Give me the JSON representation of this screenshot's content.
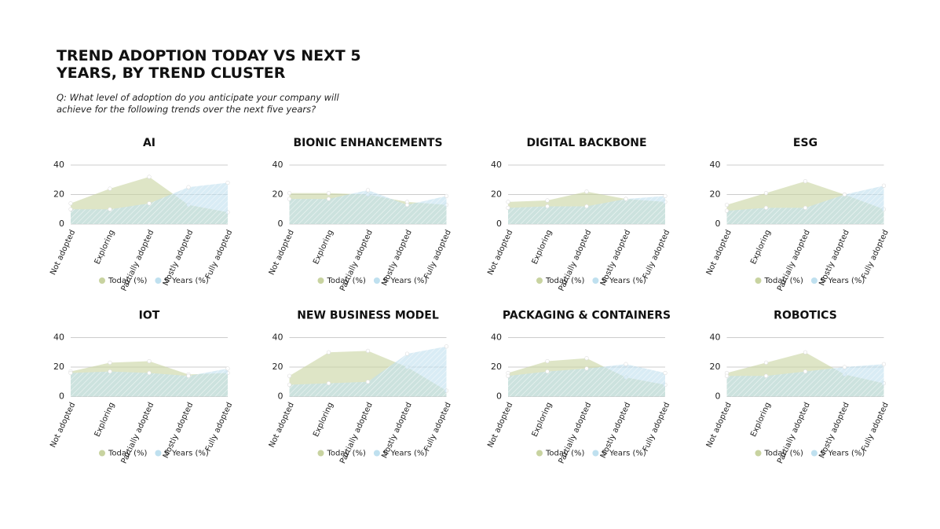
{
  "header": {
    "title": "TREND ADOPTION TODAY VS NEXT 5 YEARS, BY TREND CLUSTER",
    "subtitle": "Q: What level of adoption do you anticipate your company will achieve for the following trends over the next five years?"
  },
  "chart_data": [
    {
      "type": "area",
      "title": "AI",
      "categories": [
        "Not adopted",
        "Exploring",
        "Partially adopted",
        "Mostly adopted",
        "Fully adopted"
      ],
      "series": [
        {
          "name": "Today (%)",
          "color": "#c8d3a0",
          "values": [
            14,
            24,
            32,
            13,
            8
          ]
        },
        {
          "name": "5 Years (%)",
          "color": "#bfe0ef",
          "values": [
            10,
            10,
            14,
            25,
            28
          ]
        }
      ],
      "ylim": [
        0,
        40
      ],
      "yticks": [
        0,
        20,
        40
      ],
      "grid": true,
      "legend": "bottom"
    },
    {
      "type": "area",
      "title": "BIONIC ENHANCEMENTS",
      "categories": [
        "Not adopted",
        "Exploring",
        "Partially adopted",
        "Mostly adopted",
        "Fully adopted"
      ],
      "series": [
        {
          "name": "Today (%)",
          "color": "#c8d3a0",
          "values": [
            21,
            21,
            20,
            15,
            13
          ]
        },
        {
          "name": "5 Years (%)",
          "color": "#bfe0ef",
          "values": [
            17,
            17,
            23,
            13,
            19
          ]
        }
      ],
      "ylim": [
        0,
        40
      ],
      "yticks": [
        0,
        20,
        40
      ],
      "grid": true,
      "legend": "bottom"
    },
    {
      "type": "area",
      "title": "DIGITAL BACKBONE",
      "categories": [
        "Not adopted",
        "Exploring",
        "Partially adopted",
        "Mostly adopted",
        "Fully adopted"
      ],
      "series": [
        {
          "name": "Today (%)",
          "color": "#c8d3a0",
          "values": [
            15,
            16,
            22,
            17,
            15
          ]
        },
        {
          "name": "5 Years (%)",
          "color": "#bfe0ef",
          "values": [
            11,
            12,
            12,
            17,
            19
          ]
        }
      ],
      "ylim": [
        0,
        40
      ],
      "yticks": [
        0,
        20,
        40
      ],
      "grid": true,
      "legend": "bottom"
    },
    {
      "type": "area",
      "title": "ESG",
      "categories": [
        "Not adopted",
        "Exploring",
        "Partially adopted",
        "Mostly adopted",
        "Fully adopted"
      ],
      "series": [
        {
          "name": "Today (%)",
          "color": "#c8d3a0",
          "values": [
            13,
            21,
            29,
            20,
            10
          ]
        },
        {
          "name": "5 Years (%)",
          "color": "#bfe0ef",
          "values": [
            9,
            11,
            11,
            20,
            26
          ]
        }
      ],
      "ylim": [
        0,
        40
      ],
      "yticks": [
        0,
        20,
        40
      ],
      "grid": true,
      "legend": "bottom"
    },
    {
      "type": "area",
      "title": "IOT",
      "categories": [
        "Not adopted",
        "Exploring",
        "Partially adopted",
        "Mostly adopted",
        "Fully adopted"
      ],
      "series": [
        {
          "name": "Today (%)",
          "color": "#c8d3a0",
          "values": [
            17,
            23,
            24,
            15,
            16
          ]
        },
        {
          "name": "5 Years (%)",
          "color": "#bfe0ef",
          "values": [
            16,
            17,
            16,
            14,
            19
          ]
        }
      ],
      "ylim": [
        0,
        40
      ],
      "yticks": [
        0,
        20,
        40
      ],
      "grid": true,
      "legend": "bottom"
    },
    {
      "type": "area",
      "title": "NEW BUSINESS MODEL",
      "categories": [
        "Not adopted",
        "Exploring",
        "Partially adopted",
        "Mostly adopted",
        "Fully adopted"
      ],
      "series": [
        {
          "name": "Today (%)",
          "color": "#c8d3a0",
          "values": [
            14,
            30,
            31,
            20,
            4
          ]
        },
        {
          "name": "5 Years (%)",
          "color": "#bfe0ef",
          "values": [
            8,
            9,
            10,
            29,
            34
          ]
        }
      ],
      "ylim": [
        0,
        40
      ],
      "yticks": [
        0,
        20,
        40
      ],
      "grid": true,
      "legend": "bottom"
    },
    {
      "type": "area",
      "title": "PACKAGING & CONTAINERS",
      "categories": [
        "Not adopted",
        "Exploring",
        "Partially adopted",
        "Mostly adopted",
        "Fully adopted"
      ],
      "series": [
        {
          "name": "Today (%)",
          "color": "#c8d3a0",
          "values": [
            16,
            24,
            26,
            13,
            8
          ]
        },
        {
          "name": "5 Years (%)",
          "color": "#bfe0ef",
          "values": [
            14,
            17,
            19,
            22,
            16
          ]
        }
      ],
      "ylim": [
        0,
        40
      ],
      "yticks": [
        0,
        20,
        40
      ],
      "grid": true,
      "legend": "bottom"
    },
    {
      "type": "area",
      "title": "ROBOTICS",
      "categories": [
        "Not adopted",
        "Exploring",
        "Partially adopted",
        "Mostly adopted",
        "Fully adopted"
      ],
      "series": [
        {
          "name": "Today (%)",
          "color": "#c8d3a0",
          "values": [
            16,
            23,
            30,
            15,
            9
          ]
        },
        {
          "name": "5 Years (%)",
          "color": "#bfe0ef",
          "values": [
            14,
            14,
            17,
            20,
            22
          ]
        }
      ],
      "ylim": [
        0,
        40
      ],
      "yticks": [
        0,
        20,
        40
      ],
      "grid": true,
      "legend": "bottom"
    }
  ]
}
